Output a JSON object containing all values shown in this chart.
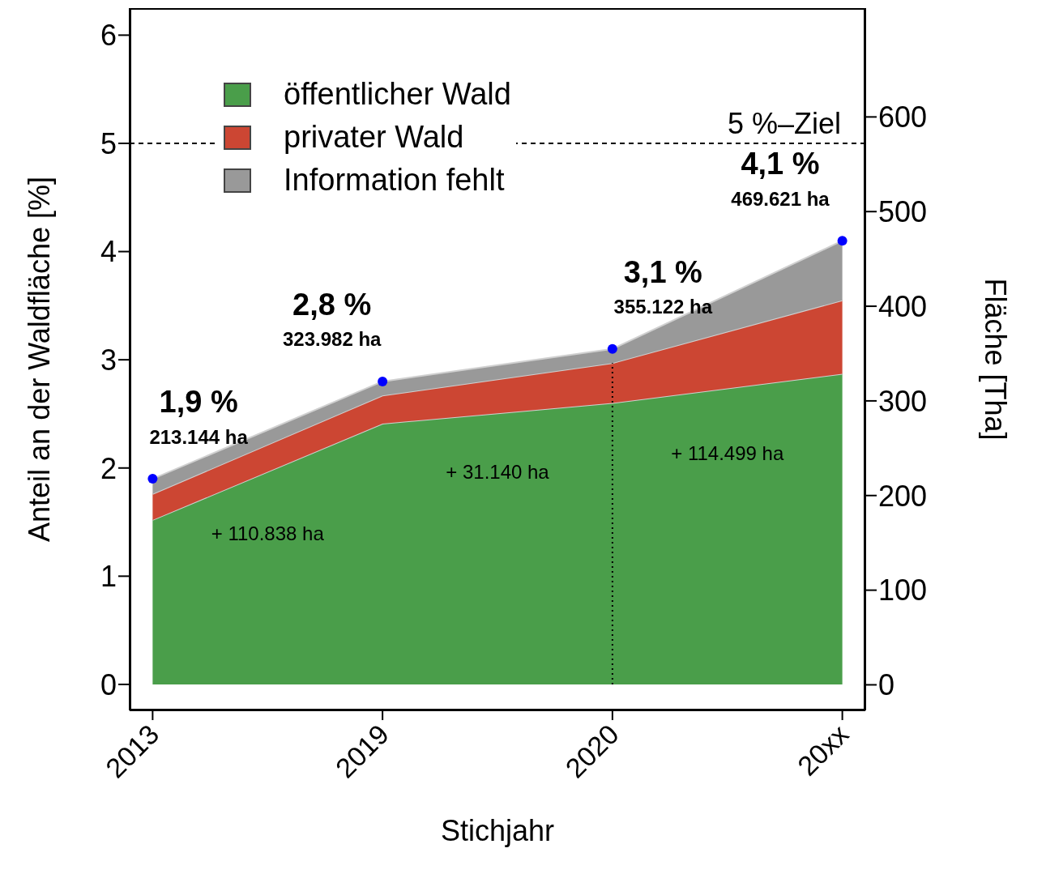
{
  "chart_data": {
    "type": "area",
    "stacked": true,
    "xlabel": "Stichjahr",
    "ylabel": "Anteil an der Waldfläche [%]",
    "y2label": "Fläche [Tha]",
    "categories": [
      "2013",
      "2019",
      "2020",
      "20xx"
    ],
    "ylim": [
      -0.24,
      6.25
    ],
    "yticks": [
      0,
      1,
      2,
      3,
      4,
      5,
      6
    ],
    "y2lim": [
      -27,
      715
    ],
    "y2ticks": [
      0,
      100,
      200,
      300,
      400,
      500,
      600
    ],
    "series": [
      {
        "name": "öffentlicher Wald",
        "color": "#4a9e4a",
        "values": [
          1.52,
          2.41,
          2.6,
          2.87
        ]
      },
      {
        "name": "privater Wald",
        "color": "#cc4633",
        "values": [
          0.24,
          0.26,
          0.37,
          0.68
        ]
      },
      {
        "name": "Information fehlt",
        "color": "#999999",
        "values": [
          0.14,
          0.13,
          0.13,
          0.55
        ]
      },
      {
        "type": "scatter",
        "color": "#0000ff",
        "values": [
          1.9,
          2.8,
          3.1,
          4.1
        ]
      }
    ],
    "ref_lines": [
      {
        "axis": "y",
        "value": 5,
        "label": "5 %–Ziel",
        "line_style": "dashed",
        "color": "#000000"
      },
      {
        "axis": "x",
        "value": "2020",
        "line_style": "dotted",
        "color": "#000000"
      }
    ],
    "annotations": [
      "1,9 %",
      "213.144 ha",
      "2,8 %",
      "323.982 ha",
      "3,1 %",
      "355.122 ha",
      "4,1 %",
      "469.621 ha",
      "+ 110.838 ha",
      "+ 31.140 ha",
      "+ 114.499 ha"
    ],
    "legend": "top left"
  }
}
